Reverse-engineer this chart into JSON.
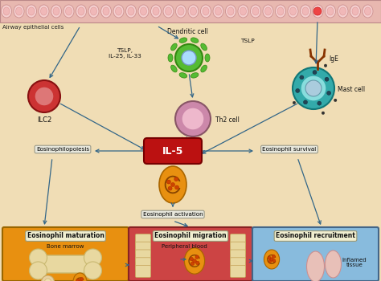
{
  "bg_color": "#f0ddb5",
  "epithelial_bg": "#e8b8b0",
  "epithelial_cell_face": "#f5d0d0",
  "epithelial_cell_inner": "#f0b8b8",
  "il5_box_color": "#bb1111",
  "il5_text_color": "#ffffff",
  "arrow_color": "#336688",
  "label_box_color": "#e8e8dd",
  "label_box_edge": "#999988",
  "ilc2_outer": "#cc3333",
  "ilc2_inner": "#dd7777",
  "th2_outer": "#cc88aa",
  "th2_inner": "#eeb8cc",
  "dendritic_outer": "#55bb33",
  "dendritic_inner": "#aaddff",
  "mast_outer": "#33aaaa",
  "mast_inner": "#88dddd",
  "mast_nucleus": "#aaccdd",
  "eos_color": "#e89010",
  "eos_granule": "#cc4400",
  "bone_marrow_bg": "#e89010",
  "pb_bg": "#cc4444",
  "it_bg": "#88bbdd",
  "bone_color": "#e8d8a0",
  "annotation_tslp1": "TSLP,\nIL-25, IL-33",
  "annotation_tslp2": "TSLP",
  "annotation_ige": "IgE",
  "label_ilc2": "ILC2",
  "label_dendritic": "Dendritic cell",
  "label_th2": "Th2 cell",
  "label_mast": "Mast cell",
  "label_airway": "Airway epithelial cells",
  "label_il5": "IL-5",
  "label_eosinophil": "Eosinophil",
  "label_eosinophilopoiesis": "Eosinophilopoiesis",
  "label_activation": "Eosinophil activation",
  "label_survival": "Eosinophil survival",
  "label_maturation": "Eosinophil maturation",
  "label_bone_marrow": "Bone marrow",
  "label_migration": "Eosinophil migration",
  "label_peripheral": "Peripheral blood",
  "label_recruitment": "Eosinophil recruitment",
  "label_inflamed": "Inflamed\ntissue"
}
